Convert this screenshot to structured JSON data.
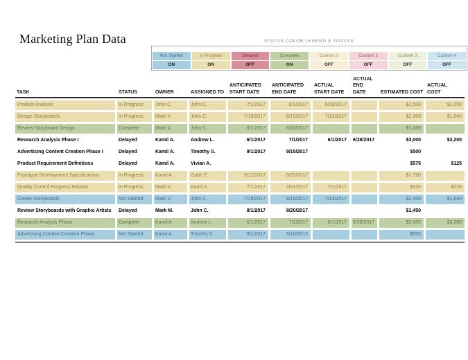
{
  "page_title": "Marketing Plan Data",
  "legend": {
    "title": "STATUS COLOR LEGEND & TOGGLE",
    "items": [
      {
        "label": "Not Started",
        "state": "ON",
        "bg": "#A6CEDE",
        "fg": "#41708A"
      },
      {
        "label": "In Progress",
        "state": "ON",
        "bg": "#EBDFB1",
        "fg": "#8F7D36"
      },
      {
        "label": "Delayed",
        "state": "OFF",
        "bg": "#D98E99",
        "fg": "#7C2D3A"
      },
      {
        "label": "Complete",
        "state": "ON",
        "bg": "#BFD0A5",
        "fg": "#5E7442"
      },
      {
        "label": "Custom 1",
        "state": "OFF",
        "bg": "#F7EFD7",
        "fg": "#9D8A4A"
      },
      {
        "label": "Custom 2",
        "state": "OFF",
        "bg": "#F3D4DB",
        "fg": "#A34F5E"
      },
      {
        "label": "Custom 3",
        "state": "OFF",
        "bg": "#ECF1DC",
        "fg": "#7F8C58"
      },
      {
        "label": "Custom 4",
        "state": "OFF",
        "bg": "#CEE5F1",
        "fg": "#4F7E98"
      }
    ]
  },
  "status_colors": {
    "In Progress": {
      "bg": "#EBDFB1",
      "fg": "#8F7D36"
    },
    "Complete": {
      "bg": "#BFD0A5",
      "fg": "#5E7442"
    },
    "Not Started": {
      "bg": "#A6CEDE",
      "fg": "#41708A"
    },
    "Delayed": {
      "bg": "",
      "fg": "#000000"
    }
  },
  "table": {
    "columns": [
      "TASK",
      "STATUS",
      "OWNER",
      "ASSIGNED TO",
      "ANTICIPATED\nSTART DATE",
      "ANTICIPATED\nEND DATE",
      "ACTUAL\nSTART DATE",
      "ACTUAL\nEND DATE",
      "ESTIMATED COST",
      "ACTUAL\nCOST"
    ],
    "rows": [
      {
        "task": "Product Analysis",
        "status": "In Progress",
        "owner": "John C.",
        "assigned_to": "John C.",
        "anticipated_start": "7/1/2017",
        "anticipated_end": "8/1/2017",
        "actual_start": "6/28/2017",
        "actual_end": "",
        "estimated_cost": "$1,500",
        "actual_cost": "$1,250"
      },
      {
        "task": "Design Storyboards",
        "status": "In Progress",
        "owner": "Mark V.",
        "assigned_to": "John C.",
        "anticipated_start": "7/15/2017",
        "anticipated_end": "8/15/2017",
        "actual_start": "7/13/2017",
        "actual_end": "",
        "estimated_cost": "$2,300",
        "actual_cost": "$1,840"
      },
      {
        "task": "Review Storyboard Design",
        "status": "Complete",
        "owner": "Mark V.",
        "assigned_to": "John C.",
        "anticipated_start": "8/1/2017",
        "anticipated_end": "8/20/2017",
        "actual_start": "",
        "actual_end": "",
        "estimated_cost": "$1,450",
        "actual_cost": ""
      },
      {
        "task": "Research Analysis Phase I",
        "status": "Delayed",
        "owner": "Kamil A.",
        "assigned_to": "Andrew L.",
        "anticipated_start": "6/1/2017",
        "anticipated_end": "7/1/2017",
        "actual_start": "6/1/2017",
        "actual_end": "6/28/2017",
        "estimated_cost": "$3,000",
        "actual_cost": "$3,200"
      },
      {
        "task": "Advertising Content Creation Phase I",
        "status": "Delayed",
        "owner": "Kamil A.",
        "assigned_to": "Timothy S.",
        "anticipated_start": "9/1/2017",
        "anticipated_end": "9/15/2017",
        "actual_start": "",
        "actual_end": "",
        "estimated_cost": "$500",
        "actual_cost": ""
      },
      {
        "task": "Product Requirement Definitions",
        "status": "Delayed",
        "owner": "Kamil A.",
        "assigned_to": "Vivian A.",
        "anticipated_start": "",
        "anticipated_end": "",
        "actual_start": "",
        "actual_end": "",
        "estimated_cost": "$575",
        "actual_cost": "$125"
      },
      {
        "task": "Prototype Development Specifications",
        "status": "In Progress",
        "owner": "Kamil A.",
        "assigned_to": "Gabe T.",
        "anticipated_start": "9/12/2017",
        "anticipated_end": "9/25/2017",
        "actual_start": "",
        "actual_end": "",
        "estimated_cost": "$1,750",
        "actual_cost": ""
      },
      {
        "task": "Quality Control Progress Reports",
        "status": "In Progress",
        "owner": "Mark V.",
        "assigned_to": "Kamil A.",
        "anticipated_start": "7/1/2017",
        "anticipated_end": "10/1/2017",
        "actual_start": "7/1/2017",
        "actual_end": "",
        "estimated_cost": "$325",
        "actual_cost": "$250"
      },
      {
        "task": "Create Storyboards",
        "status": "Not Started",
        "owner": "Mark V.",
        "assigned_to": "John C.",
        "anticipated_start": "7/15/2017",
        "anticipated_end": "8/15/2017",
        "actual_start": "7/13/2017",
        "actual_end": "",
        "estimated_cost": "$2,300",
        "actual_cost": "$1,840"
      },
      {
        "task": "Review Storyboards with Graphic Artists",
        "status": "Delayed",
        "owner": "Mark M.",
        "assigned_to": "John C.",
        "anticipated_start": "8/1/2017",
        "anticipated_end": "8/20/2017",
        "actual_start": "",
        "actual_end": "",
        "estimated_cost": "$1,450",
        "actual_cost": ""
      },
      {
        "task": "Research Analysis Phase",
        "status": "Complete",
        "owner": "Kamil A.",
        "assigned_to": "Andrew L.",
        "anticipated_start": "6/1/2017",
        "anticipated_end": "7/1/2017",
        "actual_start": "6/1/2017",
        "actual_end": "6/28/2017",
        "estimated_cost": "$3,000",
        "actual_cost": "$3,200"
      },
      {
        "task": "Advertising Content Creation Phase",
        "status": "Not Started",
        "owner": "Kamil A.",
        "assigned_to": "Timothy S.",
        "anticipated_start": "9/1/2017",
        "anticipated_end": "9/15/2017",
        "actual_start": "",
        "actual_end": "",
        "estimated_cost": "$500",
        "actual_cost": ""
      }
    ]
  }
}
